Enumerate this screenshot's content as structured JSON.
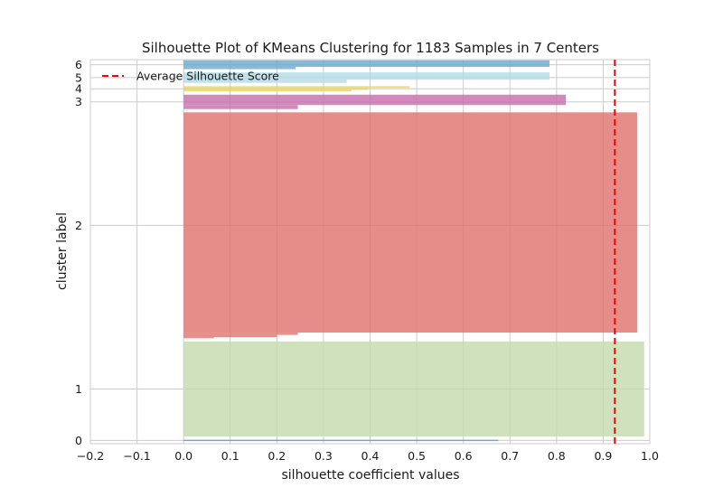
{
  "chart_data": {
    "type": "silhouette",
    "title": "Silhouette Plot of KMeans Clustering for 1183 Samples in 7 Centers",
    "xlabel": "silhouette coefficient values",
    "ylabel": "cluster label",
    "xlim": [
      -0.2,
      1.0
    ],
    "xticks": [
      "−0.2",
      "−0.1",
      "0.0",
      "0.1",
      "0.2",
      "0.3",
      "0.4",
      "0.5",
      "0.6",
      "0.7",
      "0.8",
      "0.9",
      "1.0"
    ],
    "xtick_values": [
      -0.2,
      -0.1,
      0.0,
      0.1,
      0.2,
      0.3,
      0.4,
      0.5,
      0.6,
      0.7,
      0.8,
      0.9,
      1.0
    ],
    "grid": true,
    "average_silhouette_score": 0.925,
    "legend": {
      "label": "Average Silhouette Score",
      "placement": "top-left",
      "line_color": "#ff0000"
    },
    "clusters": [
      {
        "label": "0",
        "color": "#4c9fbd",
        "y_range": [
          0,
          4
        ],
        "steps": [
          {
            "value": 0.675,
            "fraction": 1.0
          }
        ]
      },
      {
        "label": "1",
        "color": "#c4dbad",
        "y_range": [
          14,
          304
        ],
        "steps": [
          {
            "value": 0.988,
            "fraction": 1.0
          }
        ]
      },
      {
        "label": "2",
        "color": "#e0716c",
        "y_range": [
          314,
          1004
        ],
        "steps": [
          {
            "value": 0.973,
            "fraction": 0.975
          },
          {
            "value": 0.245,
            "fraction": 0.01
          },
          {
            "value": 0.2,
            "fraction": 0.01
          },
          {
            "value": 0.065,
            "fraction": 0.005
          }
        ]
      },
      {
        "label": "3",
        "color": "#c96cab",
        "y_range": [
          1014,
          1058
        ],
        "steps": [
          {
            "value": 0.82,
            "fraction": 0.72
          },
          {
            "value": 0.245,
            "fraction": 0.28
          }
        ]
      },
      {
        "label": "4",
        "color": "#e4d36b",
        "y_range": [
          1068,
          1084
        ],
        "steps": [
          {
            "value": 0.485,
            "fraction": 0.35
          },
          {
            "value": 0.395,
            "fraction": 0.35
          },
          {
            "value": 0.36,
            "fraction": 0.3
          }
        ]
      },
      {
        "label": "5",
        "color": "#b2dbe6",
        "y_range": [
          1094,
          1126
        ],
        "steps": [
          {
            "value": 0.785,
            "fraction": 0.7
          },
          {
            "value": 0.35,
            "fraction": 0.3
          }
        ]
      },
      {
        "label": "6",
        "color": "#69a9c9",
        "y_range": [
          1136,
          1163
        ],
        "steps": [
          {
            "value": 0.785,
            "fraction": 0.75
          },
          {
            "value": 0.24,
            "fraction": 0.25
          }
        ]
      }
    ],
    "ylim": [
      -8,
      1165
    ]
  }
}
